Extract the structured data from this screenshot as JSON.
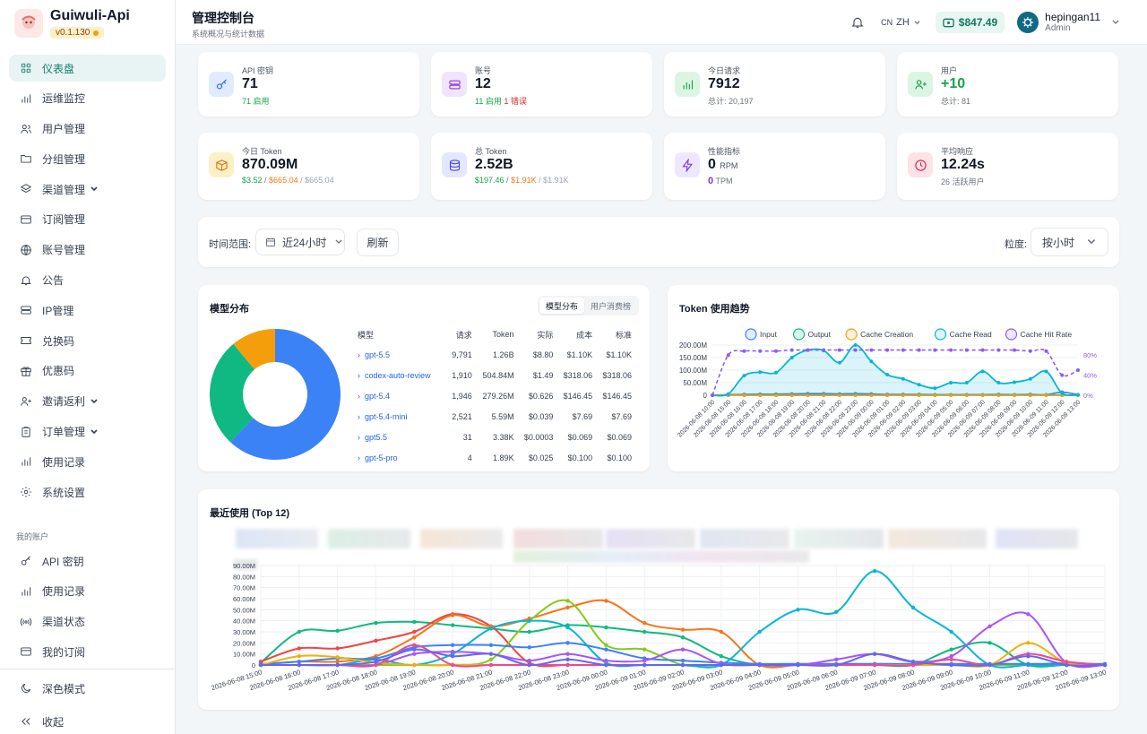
{
  "brand": {
    "name": "Guiwuli-Api",
    "version": "v0.1.130"
  },
  "sidebar": {
    "items": [
      {
        "label": "仪表盘",
        "icon": "grid-icon",
        "active": true
      },
      {
        "label": "运维监控",
        "icon": "bar-chart-icon"
      },
      {
        "label": "用户管理",
        "icon": "users-icon"
      },
      {
        "label": "分组管理",
        "icon": "folder-icon"
      },
      {
        "label": "渠道管理",
        "icon": "layers-icon",
        "chevron": true
      },
      {
        "label": "订阅管理",
        "icon": "card-icon"
      },
      {
        "label": "账号管理",
        "icon": "globe-icon"
      },
      {
        "label": "公告",
        "icon": "bell-icon"
      },
      {
        "label": "IP管理",
        "icon": "server-icon"
      },
      {
        "label": "兑换码",
        "icon": "ticket-icon"
      },
      {
        "label": "优惠码",
        "icon": "gift-icon"
      },
      {
        "label": "邀请返利",
        "icon": "user-plus-icon",
        "chevron": true
      },
      {
        "label": "订单管理",
        "icon": "clipboard-icon",
        "chevron": true
      },
      {
        "label": "使用记录",
        "icon": "bar-chart-icon"
      },
      {
        "label": "系统设置",
        "icon": "gear-icon"
      }
    ],
    "section_title": "我的账户",
    "account_items": [
      {
        "label": "API 密钥",
        "icon": "key-icon"
      },
      {
        "label": "使用记录",
        "icon": "bar-chart-icon"
      },
      {
        "label": "渠道状态",
        "icon": "signal-icon"
      },
      {
        "label": "我的订阅",
        "icon": "card-icon"
      }
    ],
    "dark_mode": "深色模式",
    "collapse": "收起"
  },
  "header": {
    "title": "管理控制台",
    "subtitle": "系统概况与统计数据",
    "lang_code": "CN",
    "lang": "ZH",
    "balance": "$847.49",
    "user": "hepingan11",
    "role": "Admin"
  },
  "stats": [
    {
      "label": "API 密钥",
      "value": "71",
      "sub": [
        {
          "t": "71 启用",
          "c": "g"
        }
      ],
      "icon": "key-icon",
      "color": "#2563eb",
      "bg": "#e0ebff"
    },
    {
      "label": "账号",
      "value": "12",
      "sub": [
        {
          "t": "11 启用 ",
          "c": "g"
        },
        {
          "t": "1 错误",
          "c": "r"
        }
      ],
      "icon": "server-icon",
      "color": "#9333ea",
      "bg": "#f1e4fd"
    },
    {
      "label": "今日请求",
      "value": "7912",
      "sub": [
        {
          "t": "总计: 20,197",
          "c": ""
        }
      ],
      "icon": "bar-chart-icon",
      "color": "#16a34a",
      "bg": "#dcf5e3"
    },
    {
      "label": "用户",
      "value": "+10",
      "valueColor": "#16a34a",
      "sub": [
        {
          "t": "总计: 81",
          "c": ""
        }
      ],
      "icon": "user-plus-icon",
      "color": "#16a34a",
      "bg": "#dcf5e3"
    },
    {
      "label": "今日 Token",
      "value": "870.09M",
      "sub": [
        {
          "t": "$3.52",
          "c": "g"
        },
        {
          "t": " / ",
          "c": ""
        },
        {
          "t": "$665.04",
          "c": "o"
        },
        {
          "t": " / $665.04",
          "c": "gr"
        }
      ],
      "icon": "box-icon",
      "color": "#d97706",
      "bg": "#fdf0c9"
    },
    {
      "label": "总 Token",
      "value": "2.52B",
      "sub": [
        {
          "t": "$197.46",
          "c": "g"
        },
        {
          "t": " / ",
          "c": ""
        },
        {
          "t": "$1.91K",
          "c": "o"
        },
        {
          "t": " / $1.91K",
          "c": "gr"
        }
      ],
      "icon": "database-icon",
      "color": "#4f46e5",
      "bg": "#e4e7ff"
    },
    {
      "label": "性能指标",
      "value": "0",
      "unit": "RPM",
      "value2": "0",
      "unit2": "TPM",
      "icon": "bolt-icon",
      "color": "#7c3aed",
      "bg": "#efe7ff"
    },
    {
      "label": "平均响应",
      "value": "12.24s",
      "sub": [
        {
          "t": "26 活跃用户",
          "c": ""
        }
      ],
      "icon": "clock-icon",
      "color": "#e11d48",
      "bg": "#fde2e6"
    }
  ],
  "filters": {
    "range_label": "时间范围:",
    "range": "近24小时",
    "refresh": "刷新",
    "gran_label": "粒度:",
    "gran": "按小时"
  },
  "model_dist": {
    "title": "模型分布",
    "tabs": [
      "模型分布",
      "用户消费榜"
    ],
    "columns": [
      "模型",
      "请求",
      "Token",
      "实际",
      "成本",
      "标准"
    ],
    "rows": [
      [
        "gpt-5.5",
        "9,791",
        "1.26B",
        "$8.80",
        "$1.10K",
        "$1.10K"
      ],
      [
        "codex-auto-review",
        "1,910",
        "504.84M",
        "$1.49",
        "$318.06",
        "$318.06"
      ],
      [
        "gpt-5.4",
        "1,946",
        "279.26M",
        "$0.626",
        "$146.45",
        "$146.45"
      ],
      [
        "gpt-5.4-mini",
        "2,521",
        "5.59M",
        "$0.039",
        "$7.69",
        "$7.69"
      ],
      [
        "gpt5.5",
        "31",
        "3.38K",
        "$0.0003",
        "$0.069",
        "$0.069"
      ],
      [
        "gpt-5-pro",
        "4",
        "1.89K",
        "$0.025",
        "$0.100",
        "$0.100"
      ]
    ],
    "pie": [
      {
        "value": 62,
        "color": "#3b82f6"
      },
      {
        "value": 27,
        "color": "#10b981"
      },
      {
        "value": 11,
        "color": "#f59e0b"
      }
    ]
  },
  "token_trend": {
    "title": "Token 使用趋势",
    "legend": [
      {
        "name": "Input",
        "color": "#3b82f6"
      },
      {
        "name": "Output",
        "color": "#10b981"
      },
      {
        "name": "Cache Creation",
        "color": "#f59e0b"
      },
      {
        "name": "Cache Read",
        "color": "#06b6d4"
      },
      {
        "name": "Cache Hit Rate",
        "color": "#8b5cf6"
      }
    ]
  },
  "recent": {
    "title": "最近使用 (Top 12)"
  },
  "chart_data": [
    {
      "type": "area",
      "title": "Token 使用趋势",
      "x": [
        "2026-06-08 10:00",
        "2026-06-08 15:00",
        "2026-06-08 16:00",
        "2026-06-08 17:00",
        "2026-06-08 18:00",
        "2026-06-08 19:00",
        "2026-06-08 20:00",
        "2026-06-08 21:00",
        "2026-06-08 22:00",
        "2026-06-08 23:00",
        "2026-06-09 00:00",
        "2026-06-09 01:00",
        "2026-06-09 02:00",
        "2026-06-09 03:00",
        "2026-06-09 04:00",
        "2026-06-09 05:00",
        "2026-06-09 06:00",
        "2026-06-09 07:00",
        "2026-06-09 08:00",
        "2026-06-09 09:00",
        "2026-06-09 10:00",
        "2026-06-09 11:00",
        "2026-06-09 12:00",
        "2026-06-09 13:00"
      ],
      "yticks": [
        "0",
        "50.00M",
        "100.00M",
        "150.00M",
        "200.00M"
      ],
      "y2ticks": [
        "0%",
        "40%",
        "80%"
      ],
      "ylim": [
        0,
        200
      ],
      "series": [
        {
          "name": "Input",
          "color": "#3b82f6",
          "values": [
            0,
            2,
            3,
            4,
            4,
            5,
            6,
            6,
            5,
            6,
            5,
            3,
            3,
            3,
            2,
            2,
            2,
            2,
            3,
            2,
            3,
            2,
            12,
            2
          ]
        },
        {
          "name": "Output",
          "color": "#10b981",
          "values": [
            0,
            0.5,
            0.5,
            0.5,
            0.5,
            0.5,
            0.5,
            0.5,
            0.5,
            0.5,
            0.5,
            0.5,
            0.5,
            0.5,
            0.5,
            0.5,
            0.5,
            0.5,
            0.5,
            0.5,
            0.5,
            0.5,
            0.5,
            0.5
          ]
        },
        {
          "name": "Cache Creation",
          "color": "#f59e0b",
          "values": [
            0,
            0,
            0,
            0,
            0,
            0,
            0,
            0,
            0,
            0,
            0,
            0,
            0,
            0,
            0,
            0,
            0,
            0,
            0,
            0,
            0,
            0,
            0,
            0
          ]
        },
        {
          "name": "Cache Read",
          "color": "#06b6d4",
          "values": [
            0,
            5,
            78,
            92,
            90,
            150,
            180,
            178,
            130,
            200,
            135,
            82,
            65,
            42,
            28,
            50,
            50,
            95,
            50,
            52,
            65,
            95,
            8,
            2
          ]
        },
        {
          "name": "Cache Hit Rate",
          "color": "#8b5cf6",
          "axis": "right",
          "values": [
            0,
            80,
            88,
            88,
            88,
            90,
            90,
            90,
            90,
            90,
            90,
            90,
            90,
            90,
            90,
            90,
            90,
            90,
            90,
            90,
            88,
            88,
            40,
            50
          ]
        }
      ]
    },
    {
      "type": "line",
      "title": "最近使用 (Top 12)",
      "x": [
        "2026-06-08 15:00",
        "2026-06-08 16:00",
        "2026-06-08 17:00",
        "2026-06-08 18:00",
        "2026-06-08 19:00",
        "2026-06-08 20:00",
        "2026-06-08 21:00",
        "2026-06-08 22:00",
        "2026-06-08 23:00",
        "2026-06-09 00:00",
        "2026-06-09 01:00",
        "2026-06-09 02:00",
        "2026-06-09 03:00",
        "2026-06-09 04:00",
        "2026-06-09 05:00",
        "2026-06-09 06:00",
        "2026-06-09 07:00",
        "2026-06-09 08:00",
        "2026-06-09 09:00",
        "2026-06-09 10:00",
        "2026-06-09 11:00",
        "2026-06-09 12:00",
        "2026-06-09 13:00"
      ],
      "yticks": [
        "0",
        "10.00M",
        "20.00M",
        "30.00M",
        "40.00M",
        "50.00M",
        "60.00M",
        "70.00M",
        "80.00M",
        "90.00M"
      ],
      "ylim": [
        0,
        90
      ],
      "series": [
        {
          "color": "#10b981",
          "values": [
            2,
            30,
            31,
            38,
            39,
            36,
            33,
            30,
            36,
            34,
            30,
            25,
            8,
            0,
            0,
            0,
            0,
            0,
            14,
            20,
            0,
            0,
            0
          ]
        },
        {
          "color": "#ef4444",
          "values": [
            3,
            15,
            15,
            22,
            30,
            46,
            35,
            2,
            0,
            0,
            0,
            0,
            0,
            0,
            0,
            0,
            0,
            0,
            0,
            0,
            0,
            0,
            0
          ]
        },
        {
          "color": "#f97316",
          "values": [
            0,
            3,
            3,
            8,
            25,
            45,
            35,
            42,
            52,
            58,
            38,
            32,
            30,
            0,
            0,
            0,
            0,
            0,
            0,
            0,
            0,
            2,
            0
          ]
        },
        {
          "color": "#84cc16",
          "values": [
            0,
            0,
            0,
            0,
            0,
            0,
            5,
            40,
            58,
            18,
            14,
            0,
            0,
            0,
            0,
            0,
            0,
            0,
            0,
            0,
            0,
            0,
            0
          ]
        },
        {
          "color": "#06b6d4",
          "values": [
            0,
            0,
            0,
            5,
            0,
            10,
            33,
            40,
            34,
            2,
            0,
            0,
            0,
            30,
            50,
            48,
            85,
            52,
            30,
            0,
            0,
            0,
            0
          ]
        },
        {
          "color": "#3b82f6",
          "values": [
            1,
            3,
            6,
            6,
            16,
            18,
            18,
            16,
            20,
            14,
            6,
            4,
            2,
            1,
            1,
            1,
            1,
            1,
            1,
            1,
            1,
            1,
            1
          ]
        },
        {
          "color": "#a855f7",
          "values": [
            0,
            0,
            0,
            0,
            10,
            12,
            10,
            4,
            10,
            4,
            4,
            14,
            1,
            0,
            0,
            5,
            10,
            3,
            8,
            35,
            46,
            2,
            0
          ]
        },
        {
          "color": "#eab308",
          "values": [
            0,
            8,
            7,
            2,
            0,
            0,
            0,
            0,
            0,
            0,
            0,
            0,
            0,
            0,
            0,
            0,
            0,
            0,
            0,
            0,
            20,
            2,
            0
          ]
        },
        {
          "color": "#ec4899",
          "values": [
            0,
            0,
            0,
            0,
            18,
            0,
            0,
            0,
            0,
            0,
            0,
            0,
            0,
            0,
            0,
            0,
            0,
            0,
            5,
            0,
            10,
            3,
            0
          ]
        },
        {
          "color": "#6366f1",
          "values": [
            0,
            0,
            0,
            3,
            14,
            8,
            10,
            0,
            5,
            0,
            0,
            0,
            0,
            0,
            0,
            0,
            10,
            3,
            0,
            0,
            8,
            0,
            0
          ]
        }
      ]
    }
  ]
}
